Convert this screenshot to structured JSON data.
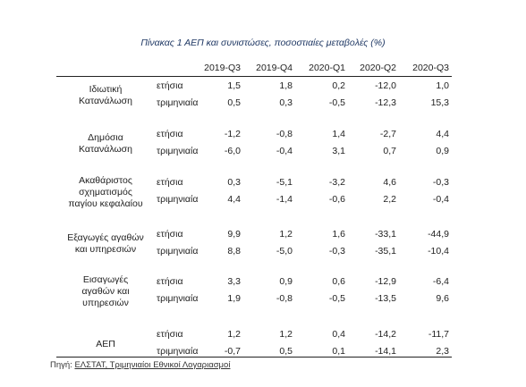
{
  "title": "Πίνακας 1 ΑΕΠ και συνιστώσες, ποσοστιαίες μεταβολές (%)",
  "columns": [
    "2019-Q3",
    "2019-Q4",
    "2020-Q1",
    "2020-Q2",
    "2020-Q3"
  ],
  "groups": [
    {
      "label": [
        "Ιδιωτική",
        "Κατανάλωση"
      ],
      "rows": [
        {
          "name": "ετήσια",
          "values": [
            "1,5",
            "1,8",
            "0,2",
            "-12,0",
            "1,0"
          ]
        },
        {
          "name": "τριμηνιαία",
          "values": [
            "0,5",
            "0,3",
            "-0,5",
            "-12,3",
            "15,3"
          ]
        }
      ]
    },
    {
      "label": [
        "Δημόσια",
        "Κατανάλωση"
      ],
      "rows": [
        {
          "name": "ετήσια",
          "values": [
            "-1,2",
            "-0,8",
            "1,4",
            "-2,7",
            "4,4"
          ]
        },
        {
          "name": "τριμηνιαία",
          "values": [
            "-6,0",
            "-0,4",
            "3,1",
            "0,7",
            "0,9"
          ]
        }
      ]
    },
    {
      "label": [
        "Ακαθάριστος",
        "σχηματισμός",
        "παγίου κεφαλαίου"
      ],
      "rows": [
        {
          "name": "ετήσια",
          "values": [
            "0,3",
            "-5,1",
            "-3,2",
            "4,6",
            "-0,3"
          ]
        },
        {
          "name": "τριμηνιαία",
          "values": [
            "4,4",
            "-1,4",
            "-0,6",
            "2,2",
            "-0,4"
          ]
        }
      ]
    },
    {
      "label": [
        "Εξαγωγές αγαθών",
        "και υπηρεσιών"
      ],
      "rows": [
        {
          "name": "ετήσια",
          "values": [
            "9,9",
            "1,2",
            "1,6",
            "-33,1",
            "-44,9"
          ]
        },
        {
          "name": "τριμηνιαία",
          "values": [
            "8,8",
            "-5,0",
            "-0,3",
            "-35,1",
            "-10,4"
          ]
        }
      ]
    },
    {
      "label": [
        "Εισαγωγές",
        "αγαθών και",
        "υπηρεσιών"
      ],
      "rows": [
        {
          "name": "ετήσια",
          "values": [
            "3,3",
            "0,9",
            "0,6",
            "-12,9",
            "-6,4"
          ]
        },
        {
          "name": "τριμηνιαία",
          "values": [
            "1,9",
            "-0,8",
            "-0,5",
            "-13,5",
            "9,6"
          ]
        }
      ]
    },
    {
      "label": [
        "ΑΕΠ"
      ],
      "rows": [
        {
          "name": "ετήσια",
          "values": [
            "1,2",
            "1,2",
            "0,4",
            "-14,2",
            "-11,7"
          ]
        },
        {
          "name": "τριμηνιαία",
          "values": [
            "-0,7",
            "0,5",
            "0,1",
            "-14,1",
            "2,3"
          ]
        }
      ]
    }
  ],
  "source": {
    "prefix": "Πηγή: ",
    "text": "ΕΛΣΤΑΤ, Τριμηνιαίοι Εθνικοί Λογαριασμοί"
  },
  "chart_data": {
    "type": "table",
    "title": "Πίνακας 1 ΑΕΠ και συνιστώσες, ποσοστιαίες μεταβολές (%)",
    "columns": [
      "2019-Q3",
      "2019-Q4",
      "2020-Q1",
      "2020-Q2",
      "2020-Q3"
    ],
    "rows": [
      {
        "component": "Ιδιωτική Κατανάλωση",
        "measure": "ετήσια",
        "values": [
          1.5,
          1.8,
          0.2,
          -12.0,
          1.0
        ]
      },
      {
        "component": "Ιδιωτική Κατανάλωση",
        "measure": "τριμηνιαία",
        "values": [
          0.5,
          0.3,
          -0.5,
          -12.3,
          15.3
        ]
      },
      {
        "component": "Δημόσια Κατανάλωση",
        "measure": "ετήσια",
        "values": [
          -1.2,
          -0.8,
          1.4,
          -2.7,
          4.4
        ]
      },
      {
        "component": "Δημόσια Κατανάλωση",
        "measure": "τριμηνιαία",
        "values": [
          -6.0,
          -0.4,
          3.1,
          0.7,
          0.9
        ]
      },
      {
        "component": "Ακαθάριστος σχηματισμός παγίου κεφαλαίου",
        "measure": "ετήσια",
        "values": [
          0.3,
          -5.1,
          -3.2,
          4.6,
          -0.3
        ]
      },
      {
        "component": "Ακαθάριστος σχηματισμός παγίου κεφαλαίου",
        "measure": "τριμηνιαία",
        "values": [
          4.4,
          -1.4,
          -0.6,
          2.2,
          -0.4
        ]
      },
      {
        "component": "Εξαγωγές αγαθών και υπηρεσιών",
        "measure": "ετήσια",
        "values": [
          9.9,
          1.2,
          1.6,
          -33.1,
          -44.9
        ]
      },
      {
        "component": "Εξαγωγές αγαθών και υπηρεσιών",
        "measure": "τριμηνιαία",
        "values": [
          8.8,
          -5.0,
          -0.3,
          -35.1,
          -10.4
        ]
      },
      {
        "component": "Εισαγωγές αγαθών και υπηρεσιών",
        "measure": "ετήσια",
        "values": [
          3.3,
          0.9,
          0.6,
          -12.9,
          -6.4
        ]
      },
      {
        "component": "Εισαγωγές αγαθών και υπηρεσιών",
        "measure": "τριμηνιαία",
        "values": [
          1.9,
          -0.8,
          -0.5,
          -13.5,
          9.6
        ]
      },
      {
        "component": "ΑΕΠ",
        "measure": "ετήσια",
        "values": [
          1.2,
          1.2,
          0.4,
          -14.2,
          -11.7
        ]
      },
      {
        "component": "ΑΕΠ",
        "measure": "τριμηνιαία",
        "values": [
          -0.7,
          0.5,
          0.1,
          -14.1,
          2.3
        ]
      }
    ]
  }
}
